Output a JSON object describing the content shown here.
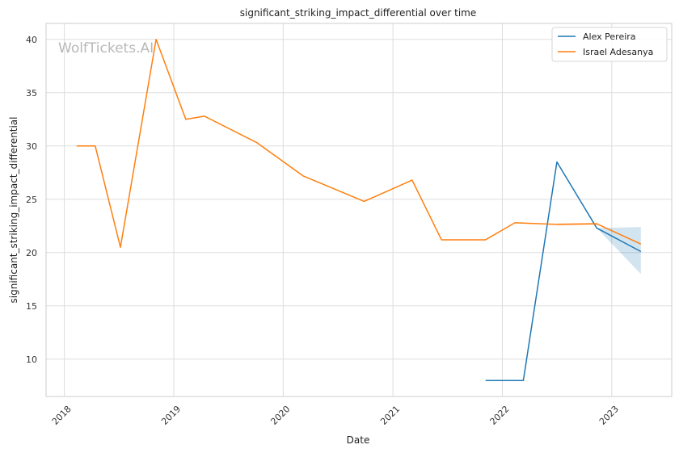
{
  "chart_data": {
    "type": "line",
    "title": "significant_striking_impact_differential over time",
    "xlabel": "Date",
    "ylabel": "significant_striking_impact_differential",
    "watermark": "WolfTickets.AI",
    "xlim": [
      "2017-11-01",
      "2023-07-20"
    ],
    "ylim": [
      6.5,
      41.5
    ],
    "x_ticks": [
      "2018",
      "2019",
      "2020",
      "2021",
      "2022",
      "2023"
    ],
    "y_ticks": [
      10,
      15,
      20,
      25,
      30,
      35,
      40
    ],
    "grid": true,
    "legend_position": "top-right",
    "series": [
      {
        "name": "Alex Pereira",
        "color": "#1f77b4",
        "points": [
          {
            "x": "2021-11-06",
            "y": 8.0
          },
          {
            "x": "2022-03-12",
            "y": 8.0
          },
          {
            "x": "2022-07-02",
            "y": 28.5
          },
          {
            "x": "2022-11-12",
            "y": 22.3
          },
          {
            "x": "2023-04-08",
            "y": 20.1
          }
        ],
        "band": [
          {
            "x": "2022-11-12",
            "lo": 22.3,
            "hi": 22.3
          },
          {
            "x": "2023-04-08",
            "lo": 18.0,
            "hi": 22.4
          }
        ]
      },
      {
        "name": "Israel Adesanya",
        "color": "#ff7f0e",
        "points": [
          {
            "x": "2018-02-11",
            "y": 30.0
          },
          {
            "x": "2018-04-14",
            "y": 30.0
          },
          {
            "x": "2018-07-07",
            "y": 20.5
          },
          {
            "x": "2018-11-03",
            "y": 40.0
          },
          {
            "x": "2019-02-10",
            "y": 32.5
          },
          {
            "x": "2019-04-13",
            "y": 32.8
          },
          {
            "x": "2019-10-06",
            "y": 30.3
          },
          {
            "x": "2020-03-07",
            "y": 27.2
          },
          {
            "x": "2020-09-27",
            "y": 24.8
          },
          {
            "x": "2021-03-06",
            "y": 26.8
          },
          {
            "x": "2021-06-12",
            "y": 21.2
          },
          {
            "x": "2021-11-06",
            "y": 21.2
          },
          {
            "x": "2022-02-12",
            "y": 22.8
          },
          {
            "x": "2022-07-02",
            "y": 22.65
          },
          {
            "x": "2022-11-12",
            "y": 22.7
          },
          {
            "x": "2023-04-08",
            "y": 20.8
          }
        ],
        "band": [
          {
            "x": "2022-07-02",
            "lo": 22.55,
            "hi": 22.75
          },
          {
            "x": "2022-11-12",
            "lo": 22.6,
            "hi": 22.8
          }
        ]
      }
    ]
  }
}
